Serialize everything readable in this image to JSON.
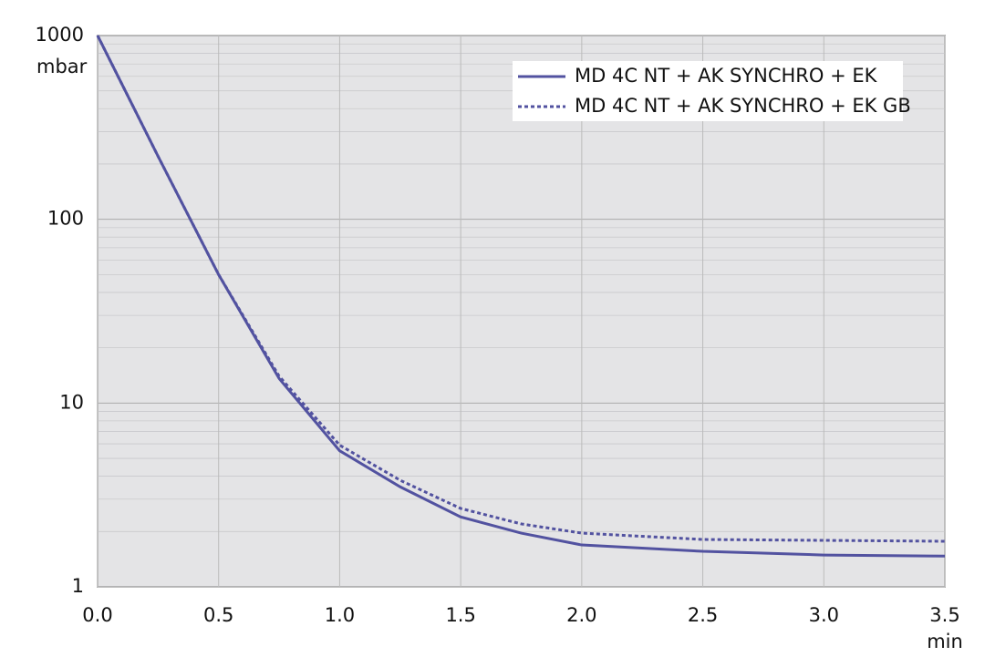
{
  "chart_data": {
    "type": "line",
    "x_label": "min",
    "y_label": "mbar",
    "x": [
      0,
      0.25,
      0.5,
      0.75,
      1.0,
      1.25,
      1.5,
      1.75,
      2.0,
      2.5,
      3.0,
      3.5
    ],
    "series": [
      {
        "name": "MD 4C NT + AK SYNCHRO + EK",
        "color": "#5252a0",
        "dash": "solid",
        "values": [
          1000,
          220,
          50,
          13.6,
          5.5,
          3.5,
          2.4,
          1.96,
          1.69,
          1.56,
          1.49,
          1.47
        ]
      },
      {
        "name": "MD 4C NT + AK SYNCHRO + EK GB",
        "color": "#5252a0",
        "dash": "dotted",
        "values": [
          1000,
          220,
          50,
          14,
          5.9,
          3.8,
          2.67,
          2.2,
          1.96,
          1.81,
          1.79,
          1.77
        ]
      }
    ],
    "xlim": [
      0,
      3.5
    ],
    "xticks": [
      {
        "value": 0,
        "label": "0.0"
      },
      0.5,
      {
        "value": 1,
        "label": "1.0"
      },
      1.5,
      {
        "value": 2,
        "label": "2.0"
      },
      2.5,
      {
        "value": 3,
        "label": "3.0"
      },
      3.5
    ],
    "ylim": [
      1,
      1000
    ],
    "yticks": [
      1,
      10,
      100,
      1000
    ],
    "log_y": true,
    "grid": true,
    "legend": "upper right"
  }
}
